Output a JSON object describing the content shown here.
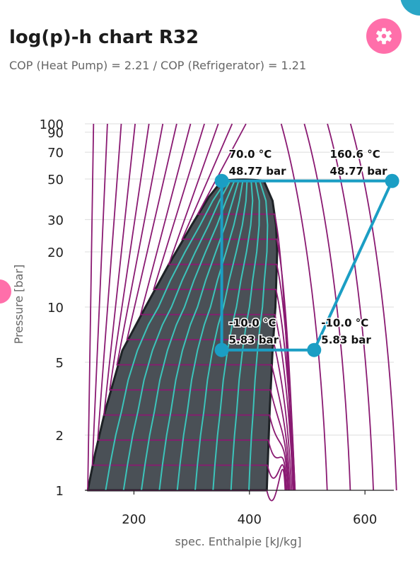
{
  "header": {
    "title": "log(p)-h chart R32",
    "subtitle": "COP (Heat Pump) = 2.21 / COP (Refrigerator) = 1.21"
  },
  "icons": {
    "settings": "gear-icon"
  },
  "colors": {
    "accent_pink": "#ff6faa",
    "accent_blue": "#2aa6c6",
    "two_phase_fill": "#4a5056",
    "isotherm": "#8a1a72",
    "quality_line": "#3cc4bb",
    "cycle": "#1b9ec4"
  },
  "chart_data": {
    "type": "line",
    "xlabel": "spec. Enthalpie [kJ/kg]",
    "ylabel": "Pressure [bar]",
    "xlim": [
      115,
      650
    ],
    "ylim": [
      1,
      100
    ],
    "y_scale": "log",
    "x_ticks": [
      200,
      400,
      600
    ],
    "y_ticks": [
      1,
      2,
      5,
      10,
      20,
      30,
      50,
      70,
      90,
      100
    ],
    "grid": true,
    "saturation_dome": {
      "liquid_line": [
        [
          120,
          1
        ],
        [
          133,
          1.6
        ],
        [
          150,
          2.7
        ],
        [
          180,
          5.8
        ],
        [
          220,
          10
        ],
        [
          260,
          17
        ],
        [
          300,
          28
        ],
        [
          330,
          40
        ],
        [
          352,
          48.77
        ]
      ],
      "vapor_line": [
        [
          430,
          1
        ],
        [
          435,
          2.7
        ],
        [
          440,
          5.8
        ],
        [
          445,
          10
        ],
        [
          448,
          20
        ],
        [
          446,
          28
        ],
        [
          440,
          38
        ],
        [
          425,
          48.77
        ]
      ]
    },
    "cycle": {
      "points": [
        {
          "h": 352,
          "p": 48.77,
          "temp_label": "70.0 °C",
          "pressure_label": "48.77 bar"
        },
        {
          "h": 647,
          "p": 48.77,
          "temp_label": "160.6 °C",
          "pressure_label": "48.77 bar"
        },
        {
          "h": 512,
          "p": 5.83,
          "temp_label": "-10.0 °C",
          "pressure_label": "5.83 bar"
        },
        {
          "h": 352,
          "p": 5.83,
          "temp_label": "-10.0 °C",
          "pressure_label": "5.83 bar"
        }
      ]
    }
  }
}
